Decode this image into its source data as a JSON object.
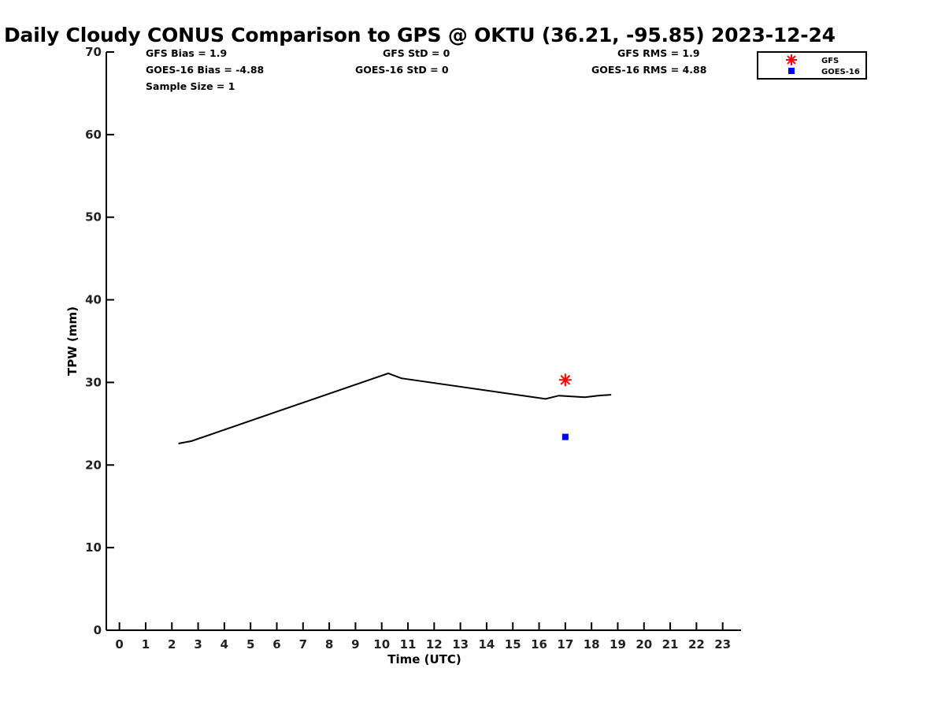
{
  "chart_data": {
    "type": "line",
    "title": "Daily Cloudy CONUS Comparison to GPS @ OKTU (36.21, -95.85) 2023-12-24",
    "xlabel": "Time (UTC)",
    "ylabel": "TPW (mm)",
    "xlim": [
      -0.5,
      23.7
    ],
    "ylim": [
      0,
      70
    ],
    "x_ticks": [
      "0",
      "1",
      "2",
      "3",
      "4",
      "5",
      "6",
      "7",
      "8",
      "9",
      "10",
      "11",
      "12",
      "13",
      "14",
      "15",
      "16",
      "17",
      "18",
      "19",
      "20",
      "21",
      "22",
      "23"
    ],
    "y_ticks": [
      "0",
      "10",
      "20",
      "30",
      "40",
      "50",
      "60",
      "70"
    ],
    "grid": false,
    "legend_position": "top-right, outside plot",
    "series": [
      {
        "marker": "line",
        "color": "#000000",
        "x": [
          2.25,
          2.75,
          10.25,
          10.75,
          16.25,
          16.75,
          17.25,
          17.75,
          18.25,
          18.75
        ],
        "y": [
          22.6,
          22.9,
          31.1,
          30.5,
          28.0,
          28.4,
          28.3,
          28.2,
          28.4,
          28.5
        ]
      },
      {
        "name": "GFS",
        "marker": "asterisk",
        "color": "#ff0000",
        "x": [
          17.0
        ],
        "y": [
          30.3
        ]
      },
      {
        "name": "GOES-16",
        "marker": "square",
        "color": "#0000ff",
        "x": [
          17.0
        ],
        "y": [
          23.4
        ]
      }
    ]
  },
  "stats": {
    "gfs_bias": "GFS Bias = 1.9",
    "goes_bias": "GOES-16 Bias = -4.88",
    "sample_size": "Sample Size = 1",
    "gfs_std": "GFS StD = 0",
    "goes_std": "GOES-16 StD = 0",
    "gfs_rms": "GFS RMS = 1.9",
    "goes_rms": "GOES-16 RMS = 4.88"
  }
}
